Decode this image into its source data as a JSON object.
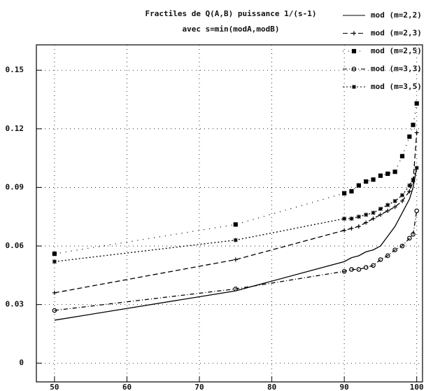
{
  "chart_data": {
    "type": "line",
    "title": "Fractiles de Q(A,B) puissance 1/(s-1)",
    "subtitle": "avec s=min(modA,modB)",
    "x": [
      50,
      75,
      90,
      91,
      92,
      93,
      94,
      95,
      96,
      97,
      98,
      99,
      99.5,
      100
    ],
    "series": [
      {
        "name": "mod (m=2,2)",
        "color": "#000000",
        "marker": "none",
        "dash": "solid",
        "values": [
          0.022,
          0.037,
          0.052,
          0.054,
          0.055,
          0.057,
          0.058,
          0.06,
          0.065,
          0.07,
          0.077,
          0.084,
          0.09,
          0.1
        ]
      },
      {
        "name": "mod (m=2,3)",
        "color": "#000000",
        "marker": "plus",
        "dash": "dashed",
        "values": [
          0.036,
          0.053,
          0.068,
          0.069,
          0.07,
          0.072,
          0.074,
          0.076,
          0.078,
          0.08,
          0.083,
          0.088,
          0.093,
          0.118
        ]
      },
      {
        "name": "mod (m=2,5)",
        "color": "#000000",
        "marker": "square",
        "dash": "sparse",
        "values": [
          0.056,
          0.071,
          0.087,
          0.088,
          0.091,
          0.093,
          0.094,
          0.096,
          0.097,
          0.098,
          0.106,
          0.116,
          0.122,
          0.133
        ]
      },
      {
        "name": "mod (m=3,3)",
        "color": "#000000",
        "marker": "circle",
        "dash": "dashdot",
        "values": [
          0.027,
          0.038,
          0.047,
          0.048,
          0.048,
          0.049,
          0.05,
          0.053,
          0.055,
          0.058,
          0.06,
          0.064,
          0.066,
          0.078
        ]
      },
      {
        "name": "mod (m=3,5)",
        "color": "#000000",
        "marker": "star",
        "dash": "dotted",
        "values": [
          0.052,
          0.063,
          0.074,
          0.074,
          0.075,
          0.076,
          0.077,
          0.079,
          0.081,
          0.083,
          0.086,
          0.091,
          0.094,
          0.1
        ]
      }
    ],
    "xlim": [
      47.5,
      100.8
    ],
    "ylim": [
      -0.0096,
      0.163
    ],
    "xticks": [
      50,
      60,
      70,
      80,
      90,
      100
    ],
    "yticks": [
      0,
      0.03,
      0.06,
      0.09,
      0.12,
      0.15
    ],
    "grid": true,
    "legend": "top-right"
  }
}
